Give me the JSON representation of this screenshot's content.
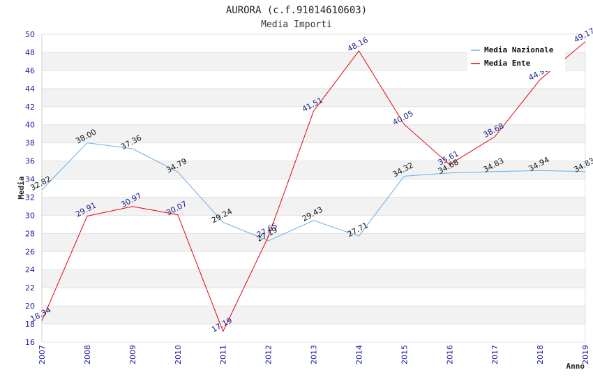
{
  "chart_data": {
    "type": "line",
    "title": "AURORA (c.f.91014610603)",
    "subtitle": "Media Importi",
    "xlabel": "Anno",
    "ylabel": "Media",
    "ylim": [
      16,
      50
    ],
    "ytick_step": 2,
    "x": [
      "2007",
      "2008",
      "2009",
      "2010",
      "2011",
      "2012",
      "2013",
      "2014",
      "2015",
      "2016",
      "2017",
      "2018",
      "2019"
    ],
    "series": [
      {
        "name": "Media Nazionale",
        "color": "#6aaee8",
        "values": [
          32.82,
          38.0,
          37.36,
          34.79,
          29.24,
          27.19,
          29.43,
          27.71,
          34.32,
          34.68,
          34.83,
          34.94,
          34.83
        ],
        "labels": [
          "32.82",
          "38.00",
          "37.36",
          "34.79",
          "29.24",
          "27.19",
          "29.43",
          "27.71",
          "34.32",
          "34.68",
          "34.83",
          "34.94",
          "34.83"
        ]
      },
      {
        "name": "Media Ente",
        "color": "#e8000e",
        "values": [
          18.34,
          29.91,
          30.97,
          30.07,
          17.19,
          27.65,
          41.51,
          48.16,
          40.05,
          35.61,
          38.68,
          44.98,
          49.17
        ],
        "labels": [
          "18.34",
          "29.91",
          "30.97",
          "30.07",
          "17.19",
          "27.65",
          "41.51",
          "48.16",
          "40.05",
          "35.61",
          "38.68",
          "44.98",
          "49.17"
        ]
      }
    ],
    "grid": true,
    "legend": "top-right"
  }
}
